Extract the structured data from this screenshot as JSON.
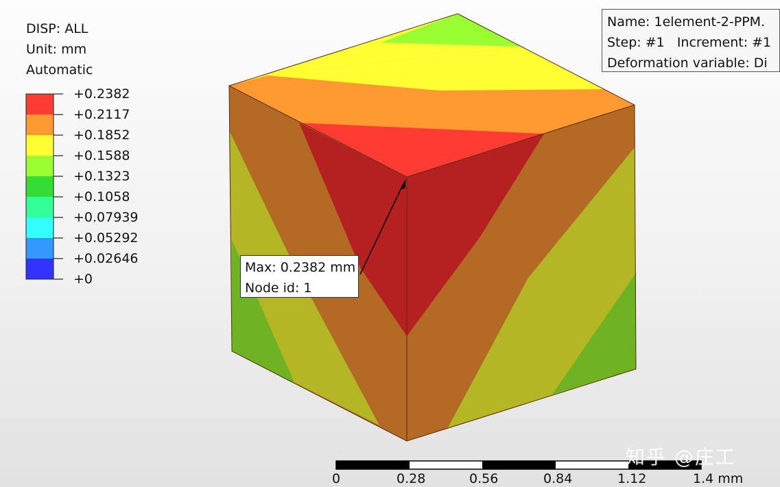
{
  "legend": {
    "title": "DISP: ALL",
    "unit": "Unit: mm",
    "mode": "Automatic",
    "values": [
      "+0.2382",
      "+0.2117",
      "+0.1852",
      "+0.1588",
      "+0.1323",
      "+0.1058",
      "+0.07939",
      "+0.05292",
      "+0.02646",
      "+0"
    ],
    "colors": [
      "#ff3b33",
      "#ff9a33",
      "#ffff33",
      "#99ff33",
      "#33dd33",
      "#33ff99",
      "#33ffff",
      "#3399ff",
      "#3333ff"
    ]
  },
  "info": {
    "name": "Name: 1element-2-PPM.",
    "step": "Step: #1   Increment: #1",
    "deformation": "Deformation variable: Di"
  },
  "max_annotation": {
    "line1": "Max: 0.2382 mm",
    "line2": "Node id: 1"
  },
  "scale_bar": {
    "labels": [
      "0",
      "0.28",
      "0.56",
      "0.84",
      "1.12",
      "1.4 mm"
    ]
  },
  "watermark": "知乎 @庄工",
  "face_colors": {
    "red": "#ff3b33",
    "orange": "#ff9a33",
    "yellow": "#ffff33",
    "lime": "#99ff33",
    "dark_red": "#b52121",
    "dark_orange": "#b26a24",
    "dark_yellow": "#b5b624",
    "dark_lime": "#6db324"
  }
}
